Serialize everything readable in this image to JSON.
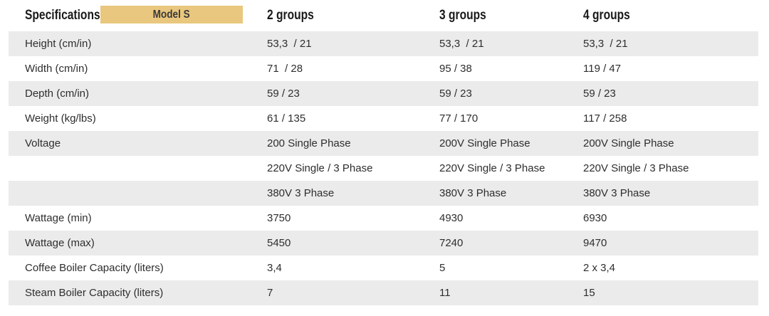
{
  "table": {
    "colors": {
      "badge_bg": "#e9c77e",
      "stripe_bg": "#ebebeb",
      "text": "#2e2e2e"
    },
    "header": {
      "col1": "Specifications",
      "badge": "Model S",
      "col2": "2 groups",
      "col3": "3 groups",
      "col4": "4 groups"
    },
    "rows": [
      {
        "label": "Height (cm/in)",
        "c2": "53,3  / 21",
        "c3": "53,3  / 21",
        "c4": "53,3  / 21"
      },
      {
        "label": "Width (cm/in)",
        "c2": "71  / 28",
        "c3": "95 / 38",
        "c4": "119 / 47"
      },
      {
        "label": "Depth (cm/in)",
        "c2": "59 / 23",
        "c3": "59 / 23",
        "c4": "59 / 23"
      },
      {
        "label": "Weight (kg/lbs)",
        "c2": "61 / 135",
        "c3": "77 / 170",
        "c4": "117 / 258"
      },
      {
        "label": "Voltage",
        "c2": "200 Single Phase",
        "c3": "200V Single Phase",
        "c4": "200V Single Phase"
      },
      {
        "label": "",
        "c2": "220V Single / 3 Phase",
        "c3": "220V Single / 3 Phase",
        "c4": "220V Single / 3 Phase"
      },
      {
        "label": "",
        "c2": "380V 3 Phase",
        "c3": "380V 3 Phase",
        "c4": "380V 3 Phase"
      },
      {
        "label": "Wattage (min)",
        "c2": "3750",
        "c3": "4930",
        "c4": "6930"
      },
      {
        "label": "Wattage (max)",
        "c2": "5450",
        "c3": "7240",
        "c4": "9470"
      },
      {
        "label": "Coffee Boiler Capacity (liters)",
        "c2": "3,4",
        "c3": "5",
        "c4": "2 x 3,4"
      },
      {
        "label": "Steam Boiler Capacity (liters)",
        "c2": "7",
        "c3": "11",
        "c4": "15"
      }
    ]
  }
}
